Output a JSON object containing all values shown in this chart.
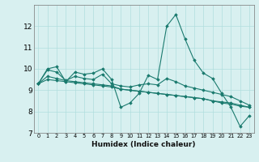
{
  "xlabel": "Humidex (Indice chaleur)",
  "x": [
    0,
    1,
    2,
    3,
    4,
    5,
    6,
    7,
    8,
    9,
    10,
    11,
    12,
    13,
    14,
    15,
    16,
    17,
    18,
    19,
    20,
    21,
    22,
    23
  ],
  "series": [
    [
      9.3,
      10.0,
      10.1,
      9.4,
      9.85,
      9.75,
      9.8,
      10.0,
      9.5,
      8.2,
      8.4,
      8.85,
      9.7,
      9.5,
      12.0,
      12.55,
      11.4,
      10.4,
      9.8,
      9.55,
      8.85,
      8.2,
      7.3,
      7.8
    ],
    [
      9.3,
      9.95,
      9.85,
      9.45,
      9.65,
      9.55,
      9.5,
      9.75,
      9.3,
      9.2,
      9.15,
      9.25,
      9.3,
      9.25,
      9.55,
      9.4,
      9.2,
      9.1,
      9.0,
      8.9,
      8.8,
      8.7,
      8.5,
      8.3
    ],
    [
      9.3,
      9.65,
      9.55,
      9.45,
      9.4,
      9.35,
      9.3,
      9.25,
      9.2,
      9.05,
      9.0,
      8.95,
      8.9,
      8.85,
      8.8,
      8.75,
      8.7,
      8.65,
      8.6,
      8.5,
      8.4,
      8.35,
      8.25,
      8.2
    ],
    [
      9.3,
      9.5,
      9.45,
      9.4,
      9.35,
      9.3,
      9.25,
      9.2,
      9.15,
      9.05,
      9.0,
      8.95,
      8.9,
      8.85,
      8.8,
      8.75,
      8.7,
      8.65,
      8.6,
      8.5,
      8.45,
      8.4,
      8.3,
      8.2
    ]
  ],
  "line_color": "#1a7a6e",
  "bg_color": "#d8f0f0",
  "grid_color": "#b0dede",
  "ylim": [
    7,
    13
  ],
  "yticks": [
    7,
    8,
    9,
    10,
    11,
    12
  ],
  "xlim": [
    -0.5,
    23.5
  ],
  "xtick_labels": [
    "0",
    "1",
    "2",
    "3",
    "4",
    "5",
    "6",
    "7",
    "8",
    "9",
    "10",
    "11",
    "12",
    "13",
    "14",
    "15",
    "16",
    "17",
    "18",
    "19",
    "20",
    "21",
    "22",
    "23"
  ]
}
